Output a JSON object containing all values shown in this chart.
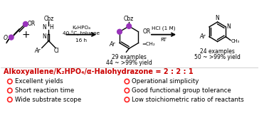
{
  "title_line": "Alkoxyallene/K₂HPO₄/α-Halohydrazone = 2 : 2 : 1",
  "title_color": "#cc0000",
  "title_fontsize": 7.0,
  "bullet_fontsize": 6.2,
  "background_color": "#ffffff",
  "bullets_left": [
    "Excellent yields",
    "Short reaction time",
    "Wide substrate scope"
  ],
  "bullets_right": [
    "Operational simplicity",
    "Good functional group tolerance",
    "Low stoichiometric ratio of reactants"
  ],
  "arrow1_label1": "K₂HPO₄",
  "arrow1_label2": "40 °C, toluene",
  "arrow1_label3": "16 h",
  "arrow2_label1": "HCl (1 M)",
  "arrow2_label2": "RT",
  "prod1_line1": "29 examples",
  "prod1_line2": "44 ~ >99% yield",
  "prod2_line1": "24 examples",
  "prod2_line2": "50 ~ >99% yield",
  "purple": "#9933bb",
  "fig_width": 3.78,
  "fig_height": 1.83,
  "dpi": 100
}
